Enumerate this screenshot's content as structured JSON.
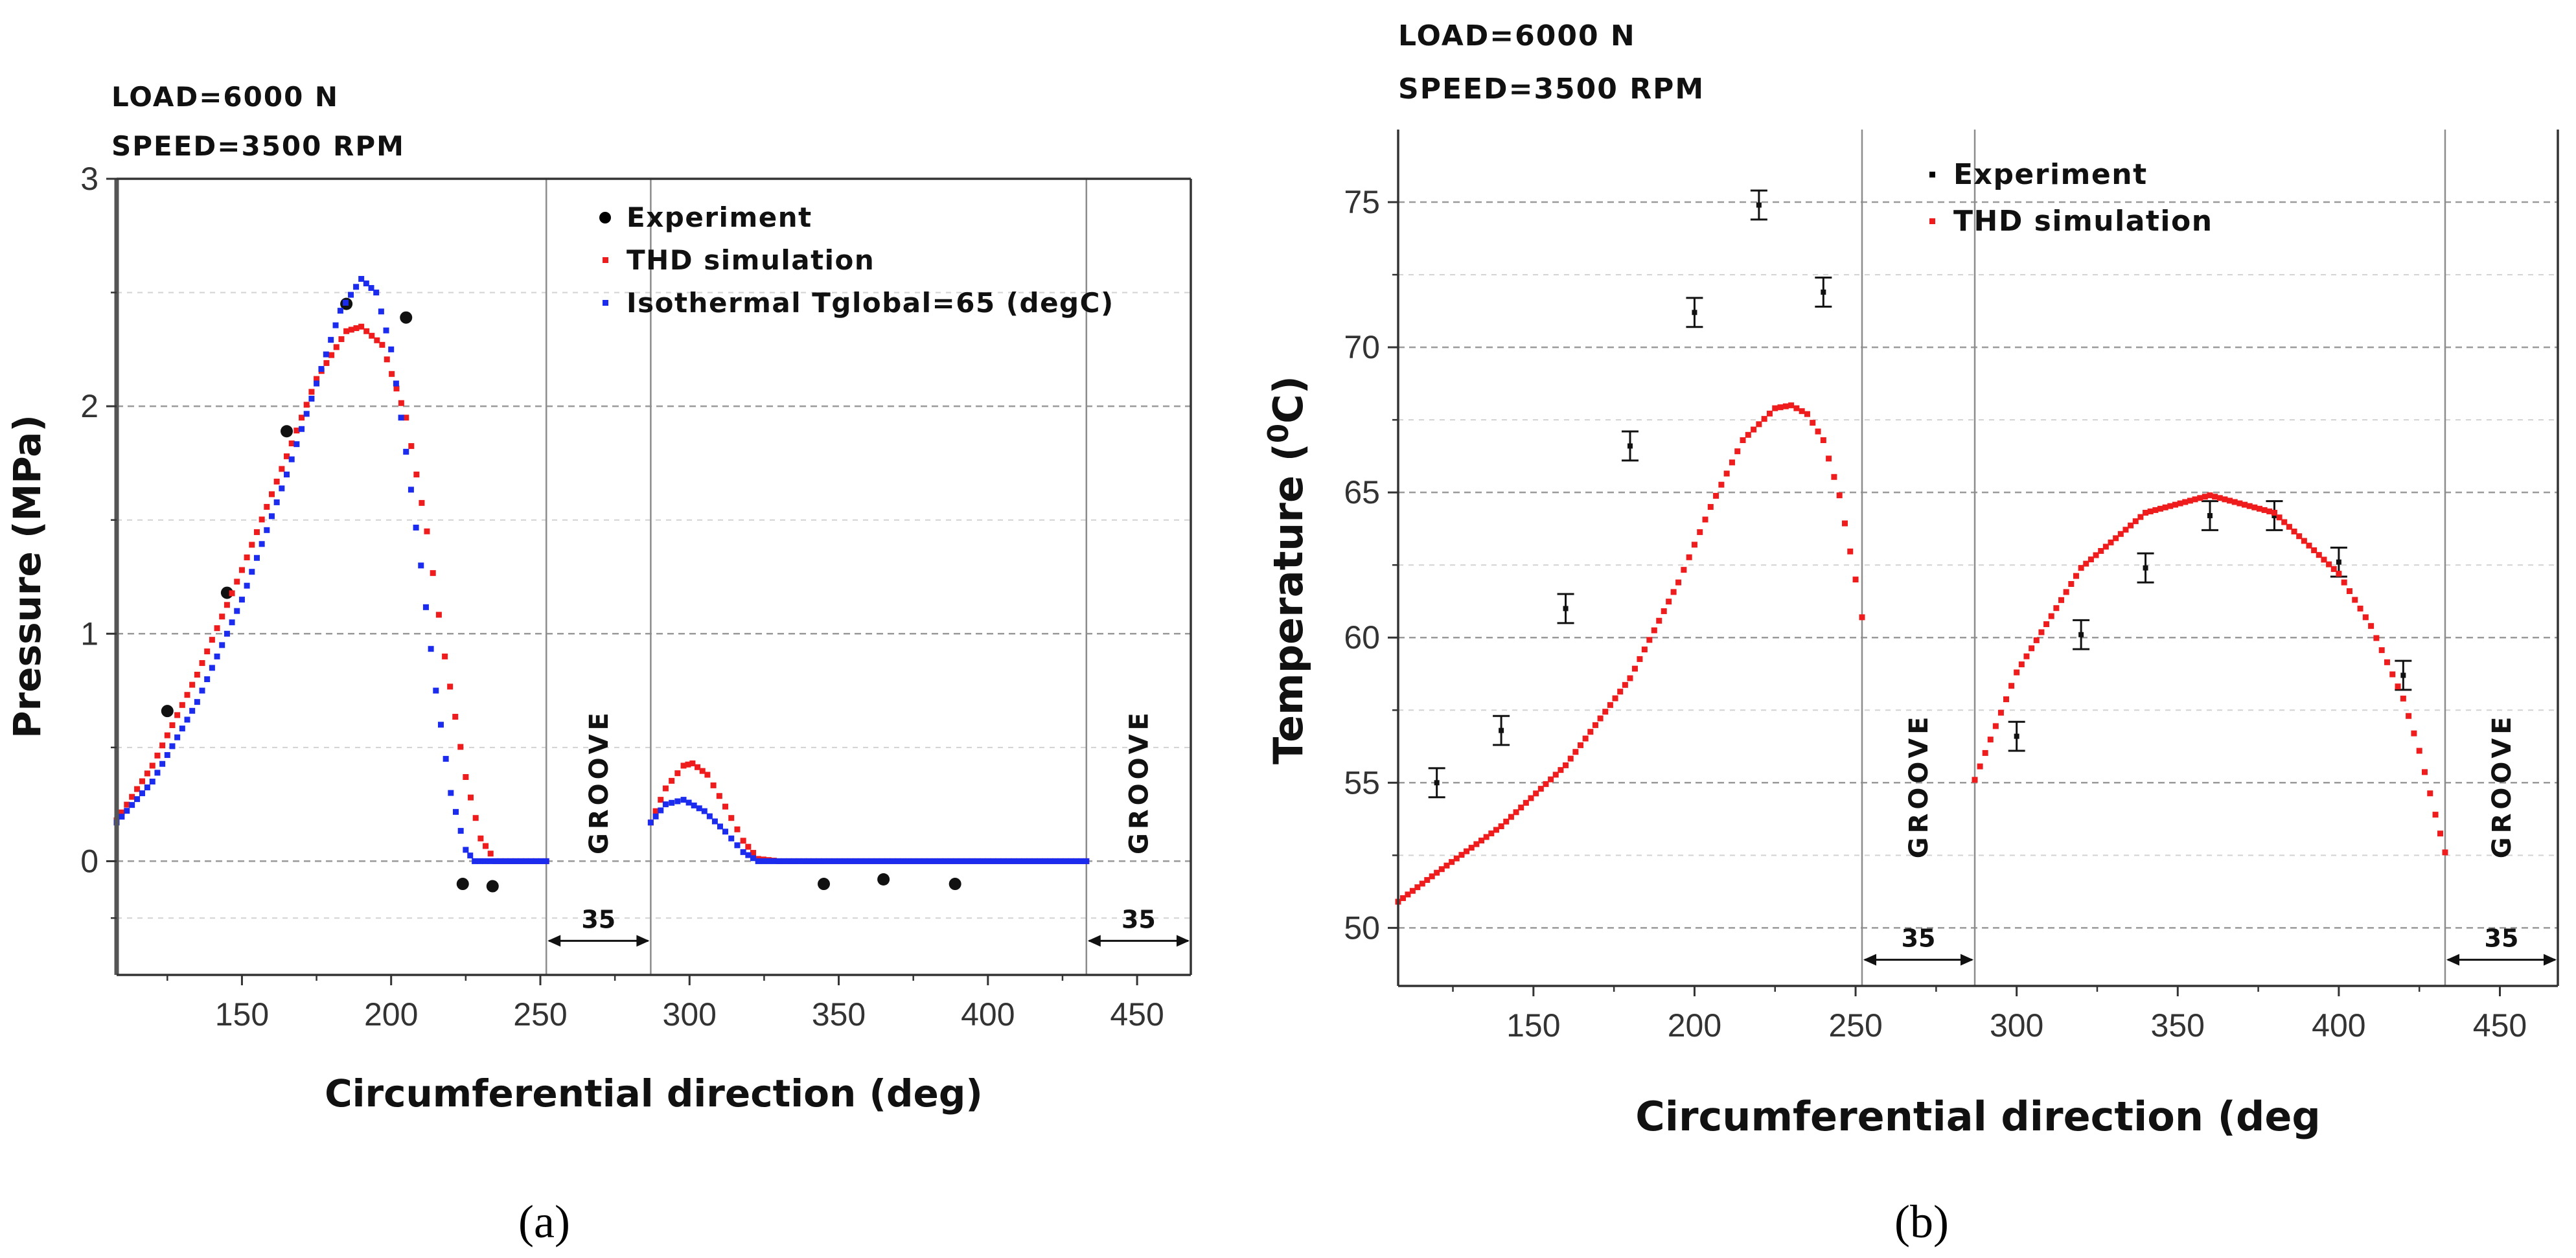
{
  "chart_data": [
    {
      "type": "scatter",
      "panel_caption": "(a)",
      "annotations": [
        "LOAD=6000 N",
        "SPEED=3500 RPM"
      ],
      "xlabel": "Circumferential direction (deg)",
      "ylabel": "Pressure (MPa)",
      "xlim": [
        108,
        468
      ],
      "ylim": [
        -0.5,
        3
      ],
      "xticks": [
        150,
        200,
        250,
        300,
        350,
        400,
        450
      ],
      "yticks": [
        0,
        1,
        2,
        3
      ],
      "grid": "horizontal dashed",
      "legend_position": "top-right",
      "grooves": [
        {
          "label": "GROOVE",
          "width_label": "35",
          "start": 252,
          "end": 287
        },
        {
          "label": "GROOVE",
          "width_label": "35",
          "start": 433,
          "end": 468
        }
      ],
      "series": [
        {
          "name": "Experiment",
          "style": "points",
          "color": "#000000",
          "x": [
            125,
            145,
            165,
            185,
            205,
            224,
            234,
            345,
            365,
            389
          ],
          "y": [
            0.66,
            1.18,
            1.89,
            2.45,
            2.39,
            -0.1,
            -0.11,
            -0.1,
            -0.08,
            -0.1
          ]
        },
        {
          "name": "THD simulation",
          "style": "dotted-line",
          "color": "#ee1c1c",
          "segments": [
            {
              "x": [
                108,
                120,
                135,
                150,
                165,
                175,
                185,
                190,
                197,
                205,
                212,
                218,
                225,
                230,
                235,
                252
              ],
              "y": [
                0.18,
                0.42,
                0.82,
                1.28,
                1.78,
                2.12,
                2.33,
                2.35,
                2.27,
                1.95,
                1.45,
                0.9,
                0.37,
                0.1,
                0.0,
                0.0
              ]
            },
            {
              "x": [
                287,
                292,
                298,
                301,
                306,
                312,
                318,
                323,
                330,
                345,
                400,
                433
              ],
              "y": [
                0.17,
                0.32,
                0.42,
                0.43,
                0.38,
                0.24,
                0.09,
                0.01,
                0.0,
                0.0,
                0.0,
                0.0
              ]
            }
          ]
        },
        {
          "name": "Isothermal Tglobal=65 (degC)",
          "style": "dotted-line",
          "color": "#1c2cee",
          "segments": [
            {
              "x": [
                108,
                120,
                135,
                150,
                165,
                175,
                183,
                190,
                195,
                200,
                205,
                210,
                215,
                220,
                225,
                228,
                252
              ],
              "y": [
                0.17,
                0.35,
                0.7,
                1.15,
                1.7,
                2.1,
                2.42,
                2.56,
                2.5,
                2.25,
                1.8,
                1.3,
                0.75,
                0.3,
                0.05,
                0.0,
                0.0
              ]
            },
            {
              "x": [
                287,
                292,
                298,
                305,
                312,
                318,
                323,
                330,
                345,
                400,
                433
              ],
              "y": [
                0.17,
                0.25,
                0.27,
                0.22,
                0.13,
                0.04,
                0.0,
                0.0,
                0.0,
                0.0,
                0.0
              ]
            }
          ]
        }
      ]
    },
    {
      "type": "scatter",
      "panel_caption": "(b)",
      "annotations": [
        "LOAD=6000 N",
        "SPEED=3500 RPM"
      ],
      "xlabel": "Circumferential direction (deg",
      "ylabel": "Temperature (",
      "ylabel_sup": "0",
      "ylabel_tail": "C)",
      "xlim": [
        108,
        468
      ],
      "ylim": [
        48,
        77.5
      ],
      "xticks": [
        150,
        200,
        250,
        300,
        350,
        400,
        450
      ],
      "yticks": [
        50,
        55,
        60,
        65,
        70,
        75
      ],
      "grid": "horizontal dashed",
      "legend_position": "top-center",
      "grooves": [
        {
          "label": "GROOVE",
          "width_label": "35",
          "start": 252,
          "end": 287
        },
        {
          "label": "GROOVE",
          "width_label": "35",
          "start": 433,
          "end": 468
        }
      ],
      "series": [
        {
          "name": "Experiment",
          "style": "points-with-errorbars",
          "color": "#000000",
          "error": 0.5,
          "x": [
            120,
            140,
            160,
            180,
            200,
            220,
            240,
            300,
            320,
            340,
            360,
            380,
            400,
            420
          ],
          "y": [
            55.0,
            56.8,
            61.0,
            66.6,
            71.2,
            74.9,
            71.9,
            56.6,
            60.1,
            62.4,
            64.2,
            64.2,
            62.6,
            58.7
          ]
        },
        {
          "name": "THD simulation",
          "style": "dotted-line",
          "color": "#ee1c1c",
          "segments": [
            {
              "x": [
                108,
                120,
                140,
                160,
                180,
                195,
                205,
                215,
                225,
                230,
                235,
                240,
                245,
                250,
                252
              ],
              "y": [
                50.9,
                51.9,
                53.5,
                55.6,
                58.6,
                61.9,
                64.5,
                66.8,
                67.9,
                68.0,
                67.7,
                66.8,
                64.9,
                62.0,
                60.7
              ]
            },
            {
              "x": [
                287,
                300,
                320,
                340,
                360,
                380,
                400,
                410,
                420,
                425,
                430,
                433
              ],
              "y": [
                55.1,
                58.8,
                62.4,
                64.3,
                64.9,
                64.3,
                62.2,
                60.4,
                57.9,
                56.1,
                53.9,
                52.6
              ]
            }
          ]
        }
      ]
    }
  ]
}
